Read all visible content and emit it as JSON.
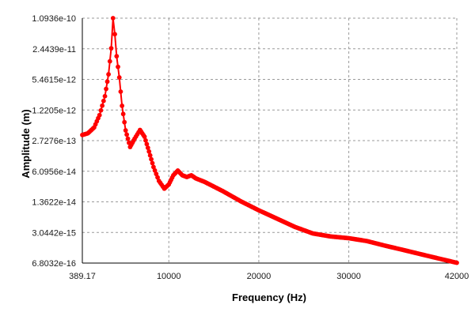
{
  "chart_data": {
    "type": "line",
    "title": "",
    "xlabel": "Frequency (Hz)",
    "ylabel": "Amplitude (m)",
    "x_scale": "linear",
    "y_scale": "log",
    "xlim": [
      389.17,
      42000
    ],
    "ylim": [
      6.8032e-16,
      1.0936e-10
    ],
    "grid": true,
    "legend": "none",
    "x_ticks": [
      {
        "value": 389.17,
        "label": "389.17"
      },
      {
        "value": 10000,
        "label": "10000"
      },
      {
        "value": 20000,
        "label": "20000"
      },
      {
        "value": 30000,
        "label": "30000"
      },
      {
        "value": 42000,
        "label": "42000"
      }
    ],
    "y_ticks": [
      {
        "value": 1.0936e-10,
        "label": "1.0936e-10"
      },
      {
        "value": 2.4439e-11,
        "label": "2.4439e-11"
      },
      {
        "value": 5.4615e-12,
        "label": "5.4615e-12"
      },
      {
        "value": 1.2205e-12,
        "label": "1.2205e-12"
      },
      {
        "value": 2.7276e-13,
        "label": "2.7276e-13"
      },
      {
        "value": 6.0956e-14,
        "label": "6.0956e-14"
      },
      {
        "value": 1.3622e-14,
        "label": "1.3622e-14"
      },
      {
        "value": 3.0442e-15,
        "label": "3.0442e-15"
      },
      {
        "value": 6.8032e-16,
        "label": "6.8032e-16"
      }
    ],
    "series": [
      {
        "color": "#ff0000",
        "points": [
          [
            389.17,
            3.6e-13
          ],
          [
            1000,
            3.9e-13
          ],
          [
            1700,
            5.2e-13
          ],
          [
            2300,
            9.5e-13
          ],
          [
            2900,
            2.4e-12
          ],
          [
            3300,
            7e-12
          ],
          [
            3600,
            2.5e-11
          ],
          [
            3800,
            1.0936e-10
          ],
          [
            4000,
            5e-11
          ],
          [
            4200,
            1.7e-11
          ],
          [
            4500,
            6e-12
          ],
          [
            4800,
            1.5e-12
          ],
          [
            5200,
            4.5e-13
          ],
          [
            5700,
            2e-13
          ],
          [
            6200,
            3e-13
          ],
          [
            6800,
            4.6e-13
          ],
          [
            7300,
            3.3e-13
          ],
          [
            7800,
            1.6e-13
          ],
          [
            8300,
            7.5e-14
          ],
          [
            8900,
            3.8e-14
          ],
          [
            9500,
            2.6e-14
          ],
          [
            10000,
            3.2e-14
          ],
          [
            10500,
            5e-14
          ],
          [
            11000,
            6.3e-14
          ],
          [
            11500,
            5e-14
          ],
          [
            12000,
            4.6e-14
          ],
          [
            12500,
            5e-14
          ],
          [
            13000,
            4.3e-14
          ],
          [
            14000,
            3.6e-14
          ],
          [
            16000,
            2.3e-14
          ],
          [
            18000,
            1.4e-14
          ],
          [
            20000,
            9e-15
          ],
          [
            22000,
            6e-15
          ],
          [
            24000,
            4e-15
          ],
          [
            26000,
            2.9e-15
          ],
          [
            28000,
            2.5e-15
          ],
          [
            30000,
            2.3e-15
          ],
          [
            32000,
            2e-15
          ],
          [
            34000,
            1.6e-15
          ],
          [
            36000,
            1.3e-15
          ],
          [
            38000,
            1.05e-15
          ],
          [
            40000,
            8.5e-16
          ],
          [
            42000,
            6.9e-16
          ]
        ]
      }
    ]
  }
}
